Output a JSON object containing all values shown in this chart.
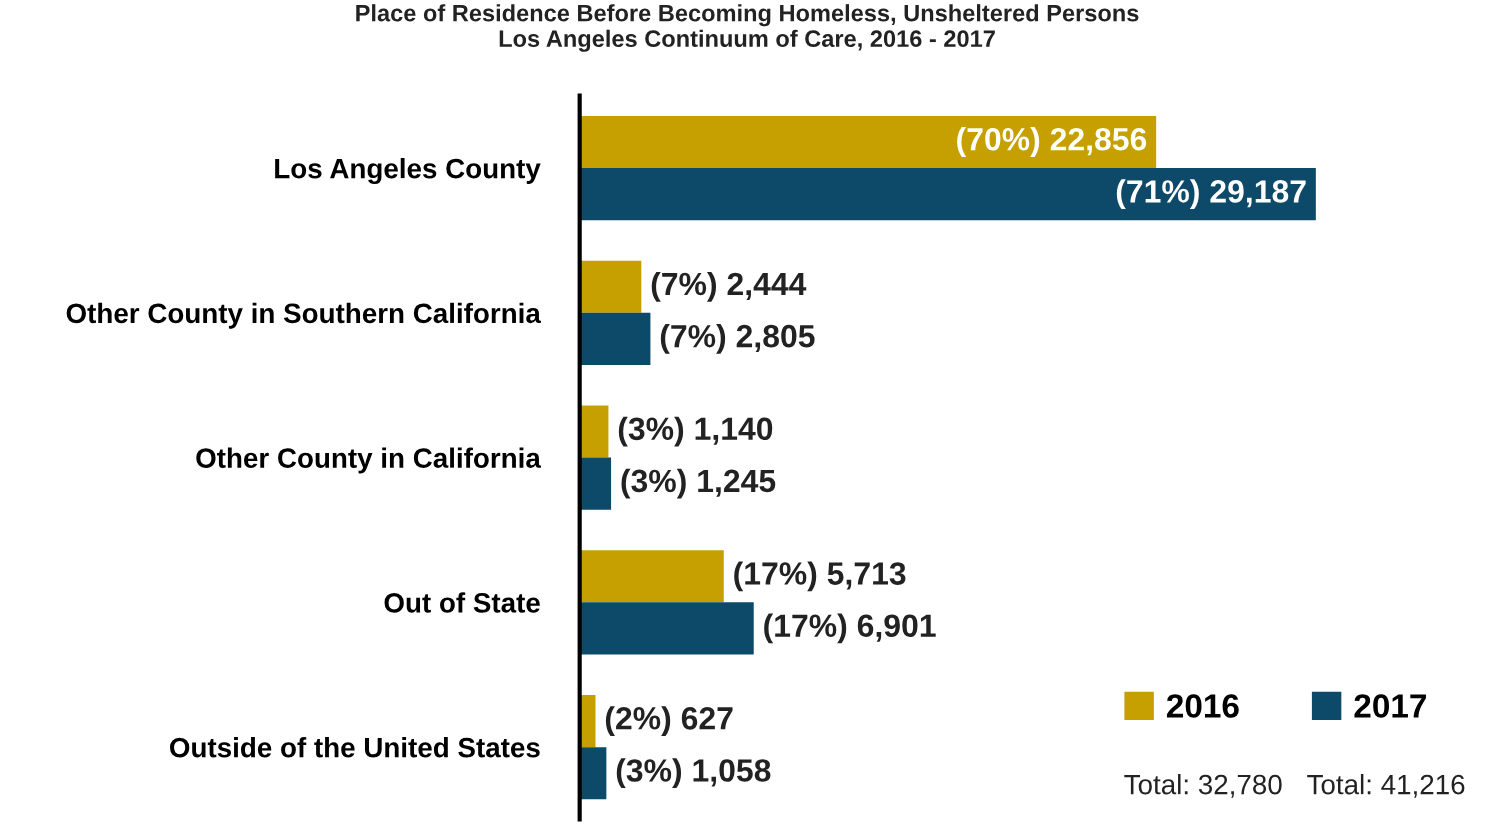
{
  "chart_data": {
    "type": "bar",
    "orientation": "horizontal",
    "title": "Place of Residence Before Becoming Homeless, Unsheltered Persons\nLos Angeles Continuum of Care, 2016 - 2017",
    "categories": [
      "Los Angeles County",
      "Other County in Southern California",
      "Other County in California",
      "Out of State",
      "Outside of the United States"
    ],
    "series": [
      {
        "name": "2016",
        "color": "#c5a000",
        "values": [
          22856,
          2444,
          1140,
          5713,
          627
        ],
        "value_labels": [
          "(70%) 22,856",
          "(7%) 2,444",
          "(3%) 1,140",
          "(17%) 5,713",
          "(2%) 627"
        ]
      },
      {
        "name": "2017",
        "color": "#0d4a6a",
        "values": [
          29187,
          2805,
          1245,
          6901,
          1058
        ],
        "value_labels": [
          "(71%) 29,187",
          "(7%) 2,805",
          "(3%) 1,245",
          "(17%) 6,901",
          "(3%) 1,058"
        ]
      }
    ],
    "annotations": [
      "Total: 32,780",
      "Total: 41,216"
    ],
    "legend": "bottom right",
    "grid": false,
    "tick_labels": "y"
  }
}
